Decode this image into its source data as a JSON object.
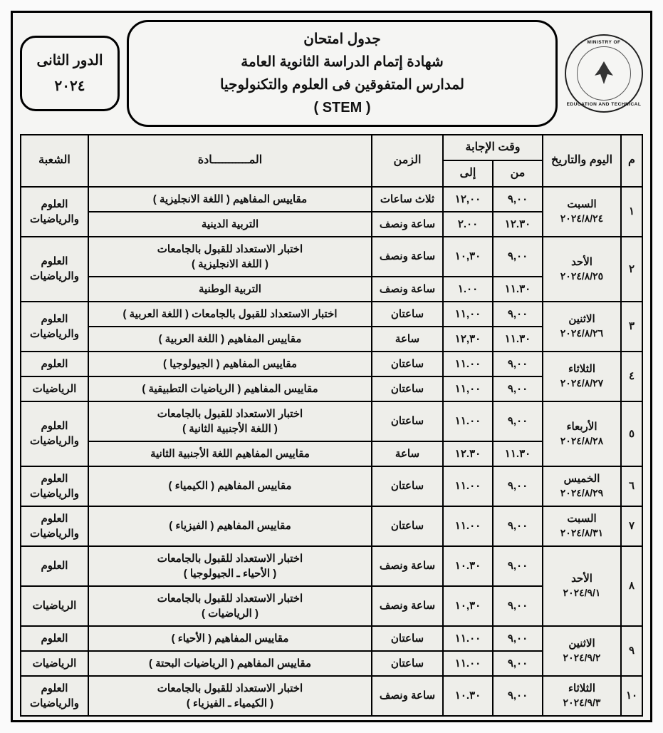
{
  "logo": {
    "top_text": "MINISTRY OF",
    "bot_text": "EDUCATION AND TECHNICAL"
  },
  "title": {
    "l1": "جدول امتحان",
    "l2": "شهادة إتمام الدراسة الثانوية العامة",
    "l3": "لمدارس المتفوقين فى العلوم والتكنولوجيا",
    "l4": "( STEM )"
  },
  "round": {
    "l1": "الدور الثانى",
    "l2": "٢٠٢٤"
  },
  "headers": {
    "m": "م",
    "day": "اليوم والتاريخ",
    "answer_time": "وقت الإجابة",
    "from": "من",
    "to": "إلى",
    "duration": "الزمن",
    "subject": "المـــــــــــادة",
    "section": "الشعبة"
  },
  "rows": [
    {
      "n": "١",
      "day": "السبت",
      "date": "٢٠٢٤/٨/٢٤",
      "exams": [
        {
          "from": "٩,٠٠",
          "to": "١٢,٠٠",
          "dur": "ثلاث ساعات",
          "subj": "مقاييس المفاهيم ( اللغة الانجليزية )",
          "sect": "العلوم والرياضيات",
          "sect_rowspan": 2
        },
        {
          "from": "١٢.٣٠",
          "to": "٢.٠٠",
          "dur": "ساعة ونصف",
          "subj": "التربية الدينية"
        }
      ]
    },
    {
      "n": "٢",
      "day": "الأحد",
      "date": "٢٠٢٤/٨/٢٥",
      "exams": [
        {
          "from": "٩,٠٠",
          "to": "١٠,٣٠",
          "dur": "ساعة ونصف",
          "subj": "اختبار الاستعداد للقبول بالجامعات\n( اللغة الانجليزية )",
          "sect": "العلوم والرياضيات",
          "sect_rowspan": 2
        },
        {
          "from": "١١.٣٠",
          "to": "١.٠٠",
          "dur": "ساعة ونصف",
          "subj": "التربية الوطنية"
        }
      ]
    },
    {
      "n": "٣",
      "day": "الاثنين",
      "date": "٢٠٢٤/٨/٢٦",
      "exams": [
        {
          "from": "٩,٠٠",
          "to": "١١,٠٠",
          "dur": "ساعتان",
          "subj": "اختبار الاستعداد للقبول بالجامعات ( اللغة العربية )",
          "sect": "العلوم والرياضيات",
          "sect_rowspan": 2
        },
        {
          "from": "١١.٣٠",
          "to": "١٢,٣٠",
          "dur": "ساعة",
          "subj": "مقاييس المفاهيم ( اللغة العربية )"
        }
      ]
    },
    {
      "n": "٤",
      "day": "الثلاثاء",
      "date": "٢٠٢٤/٨/٢٧",
      "exams": [
        {
          "from": "٩,٠٠",
          "to": "١١.٠٠",
          "dur": "ساعتان",
          "subj": "مقاييس المفاهيم ( الجيولوجيا )",
          "sect": "العلوم"
        },
        {
          "from": "٩,٠٠",
          "to": "١١,٠٠",
          "dur": "ساعتان",
          "subj": "مقاييس المفاهيم ( الرياضيات التطبيقية )",
          "sect": "الرياضيات"
        }
      ]
    },
    {
      "n": "٥",
      "day": "الأربعاء",
      "date": "٢٠٢٤/٨/٢٨",
      "exams": [
        {
          "from": "٩,٠٠",
          "to": "١١.٠٠",
          "dur": "ساعتان",
          "subj": "اختبار الاستعداد للقبول بالجامعات\n( اللغة الأجنبية الثانية )",
          "sect": "العلوم والرياضيات",
          "sect_rowspan": 2
        },
        {
          "from": "١١.٣٠",
          "to": "١٢.٣٠",
          "dur": "ساعة",
          "subj": "مقاييس المفاهيم اللغة الأجنبية الثانية"
        }
      ]
    },
    {
      "n": "٦",
      "day": "الخميس",
      "date": "٢٠٢٤/٨/٢٩",
      "exams": [
        {
          "from": "٩,٠٠",
          "to": "١١.٠٠",
          "dur": "ساعتان",
          "subj": "مقاييس المفاهيم ( الكيمياء )",
          "sect": "العلوم والرياضيات"
        }
      ]
    },
    {
      "n": "٧",
      "day": "السبت",
      "date": "٢٠٢٤/٨/٣١",
      "exams": [
        {
          "from": "٩,٠٠",
          "to": "١١.٠٠",
          "dur": "ساعتان",
          "subj": "مقاييس المفاهيم ( الفيزياء )",
          "sect": "العلوم والرياضيات"
        }
      ]
    },
    {
      "n": "٨",
      "day": "الأحد",
      "date": "٢٠٢٤/٩/١",
      "exams": [
        {
          "from": "٩,٠٠",
          "to": "١٠.٣٠",
          "dur": "ساعة ونصف",
          "subj": "اختبار الاستعداد للقبول بالجامعات\n( الأحياء ـ الجيولوجيا )",
          "sect": "العلوم"
        },
        {
          "from": "٩,٠٠",
          "to": "١٠,٣٠",
          "dur": "ساعة ونصف",
          "subj": "اختبار الاستعداد للقبول بالجامعات\n( الرياضيات )",
          "sect": "الرياضيات"
        }
      ]
    },
    {
      "n": "٩",
      "day": "الاثنين",
      "date": "٢٠٢٤/٩/٢",
      "exams": [
        {
          "from": "٩,٠٠",
          "to": "١١.٠٠",
          "dur": "ساعتان",
          "subj": "مقاييس المفاهيم ( الأحياء )",
          "sect": "العلوم"
        },
        {
          "from": "٩,٠٠",
          "to": "١١.٠٠",
          "dur": "ساعتان",
          "subj": "مقاييس المفاهيم ( الرياضيات البحتة )",
          "sect": "الرياضيات"
        }
      ]
    },
    {
      "n": "١٠",
      "day": "الثلاثاء",
      "date": "٢٠٢٤/٩/٣",
      "exams": [
        {
          "from": "٩,٠٠",
          "to": "١٠.٣٠",
          "dur": "ساعة ونصف",
          "subj": "اختبار الاستعداد للقبول بالجامعات\n( الكيمياء ـ الفيزياء )",
          "sect": "العلوم والرياضيات"
        }
      ]
    }
  ]
}
